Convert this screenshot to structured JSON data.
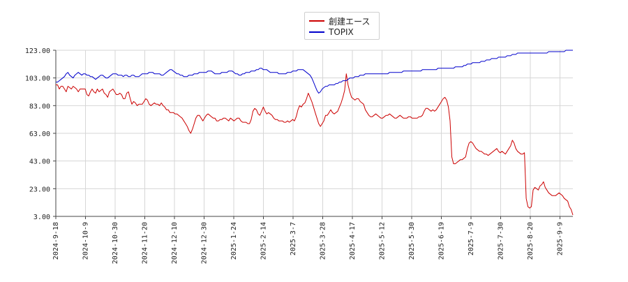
{
  "chart_data": {
    "type": "line",
    "ylim": [
      3,
      123
    ],
    "y_ticks": [
      "3.00",
      "23.00",
      "43.00",
      "63.00",
      "83.00",
      "103.00",
      "123.00"
    ],
    "x_ticks": [
      "2024-9-18",
      "2024-10-9",
      "2024-10-30",
      "2024-11-20",
      "2024-12-10",
      "2024-12-30",
      "2025-1-24",
      "2025-2-14",
      "2025-3-7",
      "2025-3-28",
      "2025-4-17",
      "2025-5-12",
      "2025-5-30",
      "2025-6-19",
      "2025-7-9",
      "2025-7-30",
      "2025-8-20",
      "2025-9-9"
    ],
    "grid": true,
    "legend_position": "top-center",
    "series": [
      {
        "name": "創建エース",
        "color": "#cc0000",
        "values": [
          98,
          98,
          95,
          97,
          97,
          95,
          93,
          97,
          96,
          95,
          97,
          96,
          95,
          93,
          95,
          95,
          95,
          95,
          91,
          90,
          93,
          95,
          93,
          92,
          95,
          93,
          94,
          95,
          92,
          91,
          89,
          93,
          94,
          95,
          93,
          91,
          91,
          92,
          91,
          88,
          88,
          92,
          93,
          88,
          84,
          86,
          85,
          83,
          84,
          84,
          84,
          86,
          88,
          87,
          84,
          83,
          84,
          85,
          84,
          84,
          83,
          85,
          83,
          82,
          80,
          80,
          78,
          78,
          78,
          77,
          77,
          76,
          75,
          74,
          72,
          70,
          68,
          65,
          63,
          66,
          70,
          74,
          76,
          76,
          74,
          72,
          74,
          76,
          77,
          76,
          75,
          74,
          74,
          72,
          72,
          73,
          73,
          74,
          74,
          73,
          72,
          74,
          73,
          72,
          73,
          74,
          74,
          72,
          71,
          71,
          71,
          70,
          70,
          73,
          79,
          81,
          80,
          77,
          76,
          79,
          82,
          79,
          77,
          78,
          77,
          76,
          74,
          73,
          73,
          72,
          72,
          72,
          71,
          71,
          72,
          71,
          72,
          73,
          72,
          75,
          80,
          83,
          82,
          84,
          85,
          88,
          92,
          89,
          86,
          82,
          78,
          74,
          70,
          68,
          70,
          72,
          76,
          76,
          78,
          80,
          78,
          77,
          78,
          79,
          82,
          85,
          89,
          94,
          106,
          98,
          93,
          89,
          88,
          87,
          88,
          88,
          86,
          85,
          84,
          80,
          78,
          76,
          75,
          75,
          76,
          77,
          76,
          75,
          74,
          74,
          75,
          76,
          76,
          77,
          76,
          75,
          74,
          74,
          75,
          76,
          75,
          74,
          74,
          74,
          75,
          75,
          74,
          74,
          74,
          74,
          75,
          75,
          76,
          79,
          81,
          81,
          80,
          79,
          80,
          79,
          80,
          82,
          84,
          86,
          88,
          89,
          87,
          82,
          72,
          46,
          41,
          41,
          42,
          43,
          44,
          44,
          45,
          46,
          52,
          56,
          57,
          56,
          54,
          52,
          51,
          50,
          50,
          49,
          48,
          48,
          47,
          48,
          49,
          50,
          51,
          52,
          50,
          49,
          50,
          49,
          48,
          50,
          52,
          54,
          58,
          56,
          52,
          50,
          49,
          48,
          48,
          49,
          16,
          10,
          9,
          10,
          22,
          24,
          23,
          22,
          25,
          26,
          28,
          24,
          22,
          20,
          19,
          18,
          18,
          18,
          19,
          20,
          19,
          18,
          16,
          15,
          14,
          10,
          8,
          4
        ]
      },
      {
        "name": "TOPIX",
        "color": "#0000cc",
        "values": [
          100,
          100,
          101,
          102,
          103,
          104,
          106,
          107,
          105,
          104,
          103,
          105,
          106,
          107,
          106,
          105,
          106,
          106,
          105,
          105,
          104,
          104,
          103,
          102,
          103,
          104,
          105,
          105,
          104,
          103,
          103,
          104,
          105,
          106,
          106,
          106,
          105,
          105,
          105,
          104,
          105,
          105,
          104,
          104,
          105,
          105,
          104,
          104,
          104,
          105,
          106,
          106,
          106,
          106,
          107,
          107,
          107,
          106,
          106,
          106,
          106,
          105,
          105,
          106,
          107,
          108,
          109,
          109,
          108,
          107,
          106,
          106,
          105,
          105,
          104,
          104,
          104,
          105,
          105,
          105,
          106,
          106,
          106,
          107,
          107,
          107,
          107,
          107,
          108,
          108,
          108,
          107,
          106,
          106,
          106,
          106,
          107,
          107,
          107,
          107,
          108,
          108,
          108,
          107,
          106,
          106,
          105,
          105,
          106,
          106,
          107,
          107,
          107,
          108,
          108,
          108,
          109,
          109,
          110,
          110,
          109,
          109,
          109,
          108,
          107,
          107,
          107,
          107,
          107,
          106,
          106,
          106,
          106,
          106,
          107,
          107,
          107,
          108,
          108,
          108,
          109,
          109,
          109,
          109,
          108,
          107,
          106,
          105,
          103,
          100,
          97,
          94,
          92,
          93,
          95,
          96,
          97,
          97,
          98,
          98,
          98,
          98,
          99,
          99,
          100,
          100,
          101,
          101,
          101,
          102,
          103,
          103,
          103,
          104,
          104,
          104,
          105,
          105,
          105,
          106,
          106,
          106,
          106,
          106,
          106,
          106,
          106,
          106,
          106,
          106,
          106,
          106,
          106,
          107,
          107,
          107,
          107,
          107,
          107,
          107,
          107,
          108,
          108,
          108,
          108,
          108,
          108,
          108,
          108,
          108,
          108,
          108,
          109,
          109,
          109,
          109,
          109,
          109,
          109,
          109,
          109,
          110,
          110,
          110,
          110,
          110,
          110,
          110,
          110,
          110,
          110,
          111,
          111,
          111,
          111,
          111,
          112,
          112,
          113,
          113,
          113,
          114,
          114,
          114,
          114,
          114,
          115,
          115,
          115,
          116,
          116,
          116,
          117,
          117,
          117,
          117,
          118,
          118,
          118,
          118,
          118,
          119,
          119,
          119,
          120,
          120,
          120,
          121,
          121,
          121,
          121,
          121,
          121,
          121,
          121,
          121,
          121,
          121,
          121,
          121,
          121,
          121,
          121,
          121,
          121,
          122,
          122,
          122,
          122,
          122,
          122,
          122,
          122,
          122,
          122,
          123,
          123,
          123,
          123,
          123
        ]
      }
    ]
  }
}
